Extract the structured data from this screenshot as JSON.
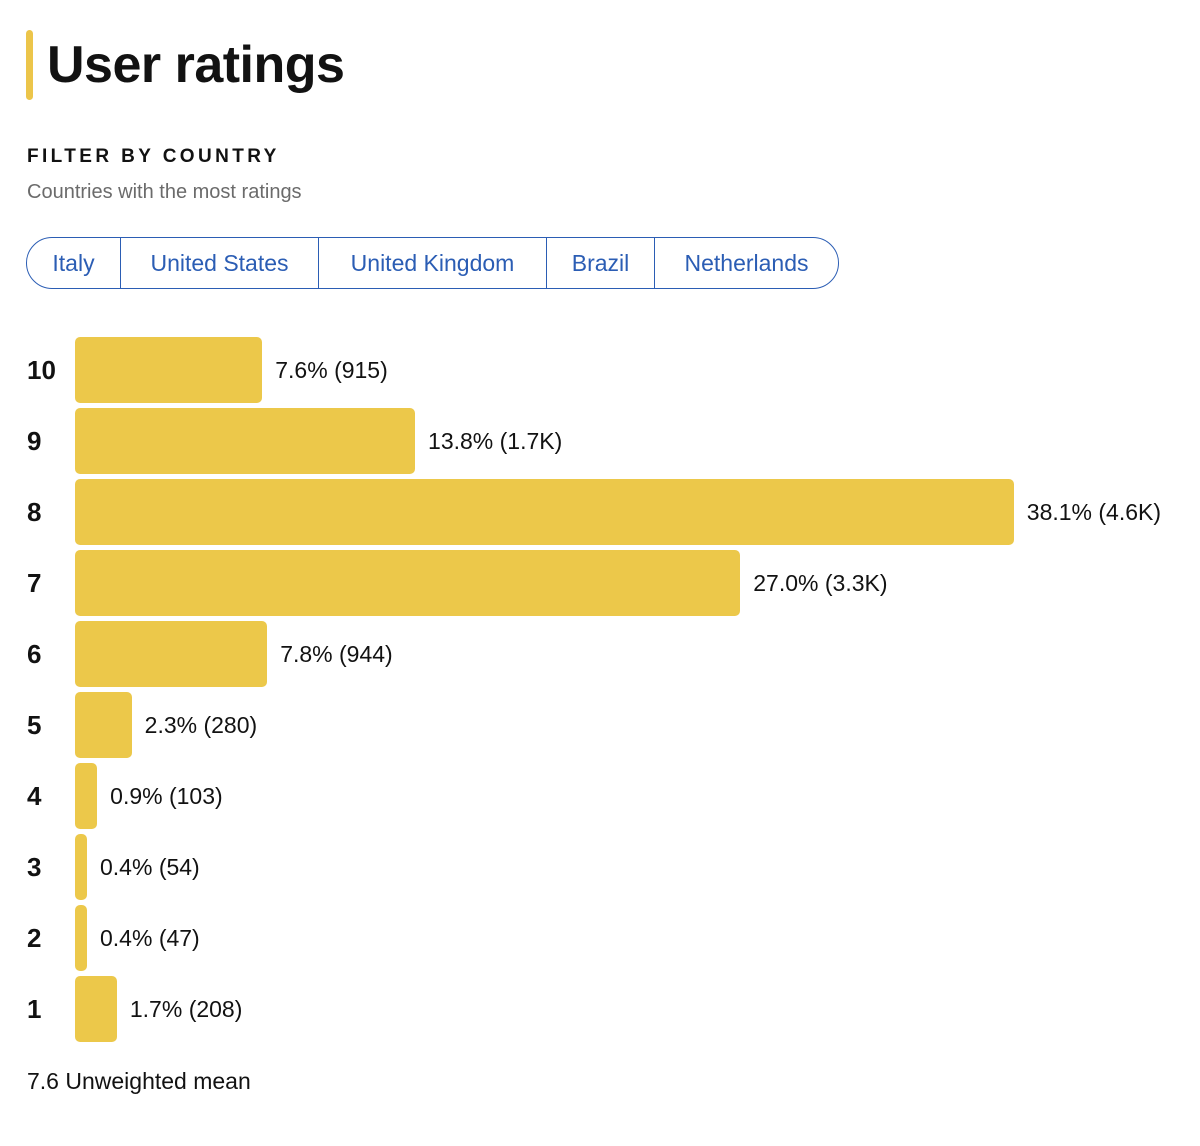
{
  "header": {
    "title": "User ratings"
  },
  "filter": {
    "heading": "FILTER BY COUNTRY",
    "subtitle": "Countries with the most ratings",
    "countries": [
      "Italy",
      "United States",
      "United Kingdom",
      "Brazil",
      "Netherlands"
    ]
  },
  "colors": {
    "accent": "#ecc84a",
    "link": "#2b5db4",
    "text": "#121212",
    "muted": "#6b6b6b"
  },
  "chart_data": {
    "type": "bar",
    "orientation": "horizontal",
    "categories": [
      "10",
      "9",
      "8",
      "7",
      "6",
      "5",
      "4",
      "3",
      "2",
      "1"
    ],
    "values": [
      7.6,
      13.8,
      38.1,
      27.0,
      7.8,
      2.3,
      0.9,
      0.4,
      0.4,
      1.7
    ],
    "value_labels": [
      "7.6% (915)",
      "13.8% (1.7K)",
      "38.1% (4.6K)",
      "27.0% (3.3K)",
      "7.8% (944)",
      "2.3% (280)",
      "0.9% (103)",
      "0.4% (54)",
      "0.4% (47)",
      "1.7% (208)"
    ],
    "title": "User ratings",
    "xlabel": "",
    "ylabel": ""
  },
  "summary": {
    "mean_value": "7.6",
    "mean_label": "Unweighted mean",
    "mean_text": "7.6 Unweighted mean"
  }
}
